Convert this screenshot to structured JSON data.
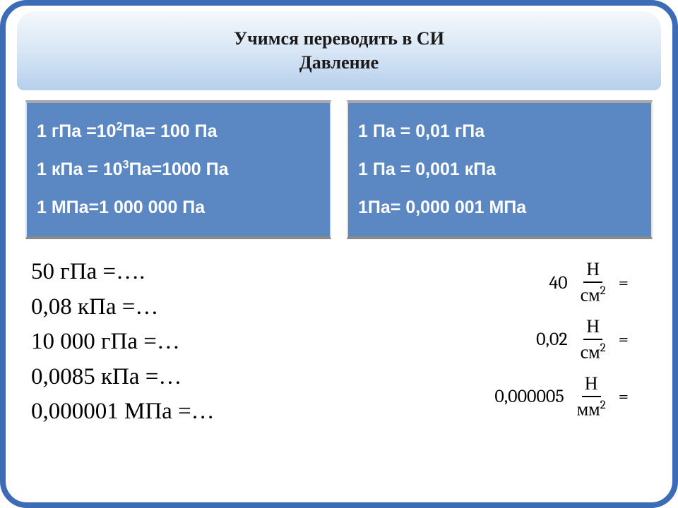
{
  "colors": {
    "frame_border": "#3b6cb5",
    "header_gradient_top": "#f4f8fc",
    "header_gradient_bottom": "#b6cfec",
    "panel_bg": "#5b88c2",
    "panel_text": "#ffffff",
    "body_text": "#000000"
  },
  "header": {
    "line1": "Учимся переводить в СИ",
    "line2": "Давление"
  },
  "font": {
    "header_size": 26,
    "panel_size": 25,
    "tasks_left_size": 33,
    "tasks_right_size": 26
  },
  "panel_left": {
    "row1_a": "1 гПа =10",
    "row1_exp": "2",
    "row1_b": "Па= 100 Па",
    "row2_a": "1 кПа = 10",
    "row2_exp": "3",
    "row2_b": "Па=1000 Па",
    "row3": "1 МПа=1 000 000 Па"
  },
  "panel_right": {
    "row1": "1 Па = 0,01 гПа",
    "row2": "1 Па = 0,001 кПа",
    "row3": "1Па= 0,000  001 МПа"
  },
  "tasks_left": {
    "r1": "50 гПа =….",
    "r2": "0,08 кПа =…",
    "r3": "10 000 гПа =…",
    "r4": "0,0085 кПа =…",
    "r5": "0,000001 МПа =…"
  },
  "tasks_right": {
    "items": [
      {
        "coef": "40",
        "num": "Н",
        "den_base": "см",
        "den_exp": "2"
      },
      {
        "coef": "0,02",
        "num": "Н",
        "den_base": "см",
        "den_exp": "2"
      },
      {
        "coef": "0,000005",
        "num": "Н",
        "den_base": "мм",
        "den_exp": "2"
      }
    ],
    "eq": "="
  }
}
